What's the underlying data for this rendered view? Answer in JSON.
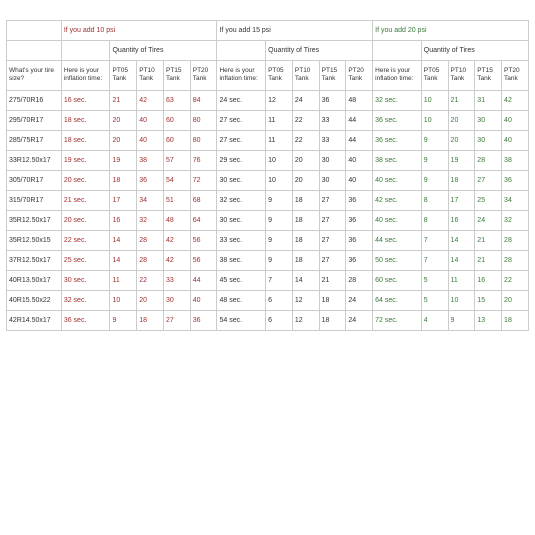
{
  "colors": {
    "red": "#a03030",
    "green": "#3a7a3a",
    "black": "#333333",
    "border": "#cccccc",
    "background": "#ffffff"
  },
  "psi_sections": [
    {
      "label": "If you add 10 psi",
      "color": "red"
    },
    {
      "label": "If you add 15 psi",
      "color": "black"
    },
    {
      "label": "If you add 20 psi",
      "color": "green"
    }
  ],
  "qty_label": "Quantity of Tires",
  "tire_size_header": "What's your tire size?",
  "inflation_header": "Here is your inflation time:",
  "tank_cols": [
    "PT05 Tank",
    "PT10 Tank",
    "PT15 Tank",
    "PT20 Tank"
  ],
  "rows": [
    {
      "size": "275/70R16",
      "t1": "16 sec.",
      "v1": [
        21,
        42,
        63,
        84
      ],
      "t2": "24 sec.",
      "v2": [
        12,
        24,
        36,
        48
      ],
      "t3": "32 sec.",
      "v3": [
        10,
        21,
        31,
        42
      ]
    },
    {
      "size": "295/70R17",
      "t1": "18 sec.",
      "v1": [
        20,
        40,
        60,
        80
      ],
      "t2": "27 sec.",
      "v2": [
        11,
        22,
        33,
        44
      ],
      "t3": "36 sec.",
      "v3": [
        10,
        20,
        30,
        40
      ]
    },
    {
      "size": "285/75R17",
      "t1": "18 sec.",
      "v1": [
        20,
        40,
        60,
        80
      ],
      "t2": "27 sec.",
      "v2": [
        11,
        22,
        33,
        44
      ],
      "t3": "36 sec.",
      "v3": [
        9,
        20,
        30,
        40
      ]
    },
    {
      "size": "33R12.50x17",
      "t1": "19 sec.",
      "v1": [
        19,
        38,
        57,
        76
      ],
      "t2": "29 sec.",
      "v2": [
        10,
        20,
        30,
        40
      ],
      "t3": "38 sec.",
      "v3": [
        9,
        19,
        28,
        38
      ]
    },
    {
      "size": "305/70R17",
      "t1": "20 sec.",
      "v1": [
        18,
        36,
        54,
        72
      ],
      "t2": "30 sec.",
      "v2": [
        10,
        20,
        30,
        40
      ],
      "t3": "40 sec.",
      "v3": [
        9,
        18,
        27,
        36
      ]
    },
    {
      "size": "315/70R17",
      "t1": "21 sec.",
      "v1": [
        17,
        34,
        51,
        68
      ],
      "t2": "32 sec.",
      "v2": [
        9,
        18,
        27,
        36
      ],
      "t3": "42 sec.",
      "v3": [
        8,
        17,
        25,
        34
      ]
    },
    {
      "size": "35R12.50x17",
      "t1": "20 sec.",
      "v1": [
        16,
        32,
        48,
        64
      ],
      "t2": "30 sec.",
      "v2": [
        9,
        18,
        27,
        36
      ],
      "t3": "40 sec.",
      "v3": [
        8,
        16,
        24,
        32
      ]
    },
    {
      "size": "35R12.50x15",
      "t1": "22 sec.",
      "v1": [
        14,
        28,
        42,
        56
      ],
      "t2": "33 sec.",
      "v2": [
        9,
        18,
        27,
        36
      ],
      "t3": "44 sec.",
      "v3": [
        7,
        14,
        21,
        28
      ]
    },
    {
      "size": "37R12.50x17",
      "t1": "25 sec.",
      "v1": [
        14,
        28,
        42,
        56
      ],
      "t2": "38 sec.",
      "v2": [
        9,
        18,
        27,
        36
      ],
      "t3": "50 sec.",
      "v3": [
        7,
        14,
        21,
        28
      ]
    },
    {
      "size": "40R13.50x17",
      "t1": "30 sec.",
      "v1": [
        11,
        22,
        33,
        44
      ],
      "t2": "45 sec.",
      "v2": [
        7,
        14,
        21,
        28
      ],
      "t3": "60 sec.",
      "v3": [
        5,
        11,
        16,
        22
      ]
    },
    {
      "size": "40R15.50x22",
      "t1": "32 sec.",
      "v1": [
        10,
        20,
        30,
        40
      ],
      "t2": "48 sec.",
      "v2": [
        6,
        12,
        18,
        24
      ],
      "t3": "64 sec.",
      "v3": [
        5,
        10,
        15,
        20
      ]
    },
    {
      "size": "42R14.50x17",
      "t1": "36 sec.",
      "v1": [
        9,
        18,
        27,
        36
      ],
      "t2": "54 sec.",
      "v2": [
        6,
        12,
        18,
        24
      ],
      "t3": "72 sec.",
      "v3": [
        4,
        9,
        13,
        18
      ]
    }
  ]
}
